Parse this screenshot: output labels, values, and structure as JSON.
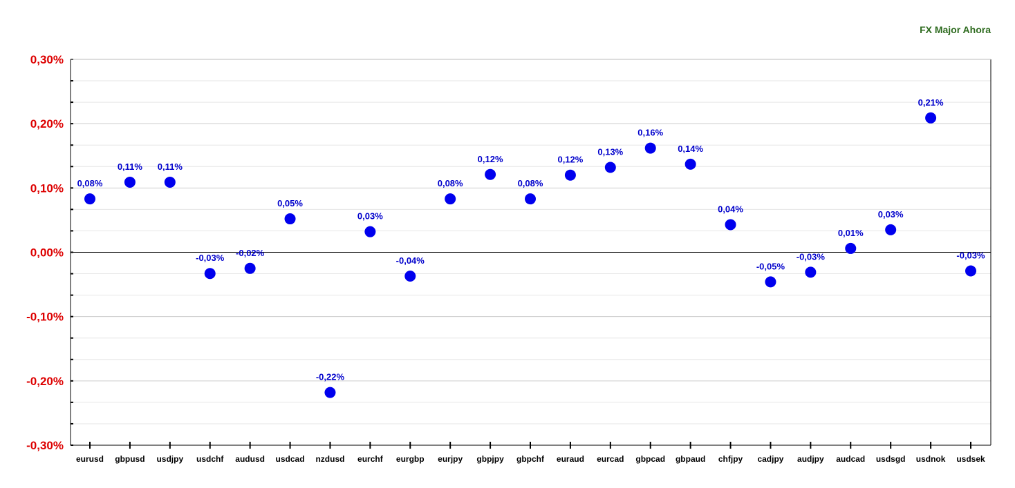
{
  "legend": {
    "title": "FX Major Ahora",
    "color": "#2e6b1f"
  },
  "colors": {
    "point": "#0000ee",
    "data_label": "#0000cc",
    "y_tick": "#dd0000",
    "x_tick": "#000000",
    "gridline": "#cccccc",
    "zero_line": "#000000",
    "axis": "#000000"
  },
  "chart_data": {
    "type": "scatter",
    "title": "",
    "xlabel": "",
    "ylabel": "",
    "ylim": [
      -0.3,
      0.3
    ],
    "grid": true,
    "legend_position": "top-right",
    "y_ticks": [
      0.3,
      0.2,
      0.1,
      0.0,
      -0.1,
      -0.2,
      -0.3
    ],
    "y_tick_labels": [
      "0,30%",
      "0,20%",
      "0,10%",
      "0,00%",
      "-0,10%",
      "-0,20%",
      "-0,30%"
    ],
    "categories": [
      "eurusd",
      "gbpusd",
      "usdjpy",
      "usdchf",
      "audusd",
      "usdcad",
      "nzdusd",
      "eurchf",
      "eurgbp",
      "eurjpy",
      "gbpjpy",
      "gbpchf",
      "euraud",
      "eurcad",
      "gbpcad",
      "gbpaud",
      "chfjpy",
      "cadjpy",
      "audjpy",
      "audcad",
      "usdsgd",
      "usdnok",
      "usdsek"
    ],
    "values": [
      0.083,
      0.109,
      0.109,
      -0.033,
      -0.025,
      0.052,
      -0.218,
      0.032,
      -0.037,
      0.083,
      0.121,
      0.083,
      0.12,
      0.132,
      0.162,
      0.137,
      0.043,
      -0.046,
      -0.031,
      0.006,
      0.035,
      0.209,
      -0.029
    ],
    "data_labels": [
      "0,08%",
      "0,11%",
      "0,11%",
      "-0,03%",
      "-0,02%",
      "0,05%",
      "-0,22%",
      "0,03%",
      "-0,04%",
      "0,08%",
      "0,12%",
      "0,08%",
      "0,12%",
      "0,13%",
      "0,16%",
      "0,14%",
      "0,04%",
      "-0,05%",
      "-0,03%",
      "0,01%",
      "0,03%",
      "0,21%",
      "-0,03%"
    ]
  }
}
